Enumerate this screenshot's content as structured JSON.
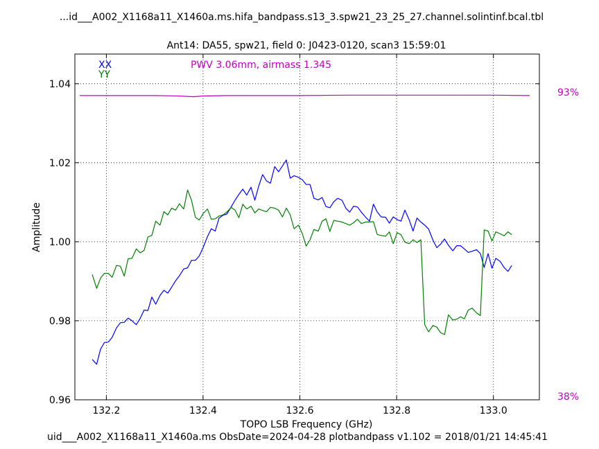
{
  "header": {
    "title": "...id___A002_X1168a11_X1460a.ms.hifa_bandpass.s13_3.spw21_23_25_27.channel.solintinf.bcal.tbl",
    "subtitle": "Ant14: DA55,  spw21,  field 0: J0423-0120,  scan3  15:59:01"
  },
  "footer": {
    "text": "uid___A002_X1168a11_X1460a.ms  ObsDate=2024-04-28   plotbandpass v1.102 = 2018/01/21 14:45:41"
  },
  "chart_data": {
    "type": "line",
    "xlabel": "TOPO LSB Frequency (GHz)",
    "ylabel": "Amplitude",
    "xlim": [
      132.135,
      133.095
    ],
    "ylim": [
      0.96,
      1.0475
    ],
    "xticks": [
      132.2,
      132.4,
      132.6,
      132.8,
      133.0
    ],
    "xtick_labels": [
      "132.2",
      "132.4",
      "132.6",
      "132.8",
      "133.0"
    ],
    "yticks": [
      0.96,
      0.98,
      1.0,
      1.02,
      1.04
    ],
    "ytick_labels": [
      "0.96",
      "0.98",
      "1.00",
      "1.02",
      "1.04"
    ],
    "grid": true,
    "legend": {
      "placement": "top-left",
      "entries": [
        {
          "label": "XX",
          "color": "#0000ff"
        },
        {
          "label": "YY",
          "color": "#008000"
        }
      ]
    },
    "annotation": {
      "text": "PWV 3.06mm, airmass 1.345",
      "color": "#c000c0"
    },
    "atm_scale": {
      "top_label": "93%",
      "bottom_label": "38%",
      "color": "#c000c0"
    },
    "series": [
      {
        "name": "XX",
        "color": "#0000ff",
        "x": [
          132.171,
          132.18,
          132.188,
          132.196,
          132.204,
          132.212,
          132.221,
          132.229,
          132.237,
          132.245,
          132.253,
          132.262,
          132.27,
          132.278,
          132.286,
          132.294,
          132.302,
          132.311,
          132.319,
          132.327,
          132.335,
          132.343,
          132.351,
          132.36,
          132.368,
          132.376,
          132.384,
          132.392,
          132.4,
          132.409,
          132.417,
          132.425,
          132.433,
          132.441,
          132.449,
          132.458,
          132.466,
          132.474,
          132.482,
          132.49,
          132.499,
          132.507,
          132.515,
          132.523,
          132.531,
          132.539,
          132.548,
          132.556,
          132.564,
          132.572,
          132.58,
          132.588,
          132.597,
          132.605,
          132.613,
          132.621,
          132.629,
          132.638,
          132.646,
          132.654,
          132.662,
          132.67,
          132.678,
          132.687,
          132.695,
          132.703,
          132.711,
          132.719,
          132.727,
          132.736,
          132.744,
          132.752,
          132.76,
          132.768,
          132.777,
          132.785,
          132.793,
          132.801,
          132.809,
          132.817,
          132.826,
          132.834,
          132.842,
          132.85,
          132.858,
          132.866,
          132.875,
          132.883,
          132.891,
          132.899,
          132.907,
          132.916,
          132.924,
          132.932,
          132.94,
          132.948,
          132.956,
          132.965,
          132.973,
          132.981,
          132.989,
          132.997,
          133.005,
          133.014,
          133.022,
          133.03,
          133.038
        ],
        "values": [
          0.9702,
          0.969,
          0.9728,
          0.9745,
          0.9746,
          0.9758,
          0.9782,
          0.9795,
          0.9796,
          0.9807,
          0.98,
          0.979,
          0.9806,
          0.9827,
          0.9826,
          0.986,
          0.9842,
          0.9864,
          0.9877,
          0.987,
          0.9885,
          0.9901,
          0.9914,
          0.9931,
          0.9934,
          0.9953,
          0.9953,
          0.9964,
          0.9985,
          1.0013,
          1.0033,
          1.0027,
          1.006,
          1.0067,
          1.007,
          1.0088,
          1.0105,
          1.012,
          1.0133,
          1.0118,
          1.0138,
          1.0105,
          1.0141,
          1.017,
          1.0154,
          1.0148,
          1.019,
          1.0177,
          1.0192,
          1.0207,
          1.0161,
          1.0167,
          1.0163,
          1.0157,
          1.0145,
          1.0145,
          1.011,
          1.0106,
          1.0112,
          1.0089,
          1.0086,
          1.0101,
          1.011,
          1.0105,
          1.0085,
          1.0075,
          1.009,
          1.0088,
          1.0075,
          1.0062,
          1.0052,
          1.0095,
          1.0075,
          1.0063,
          1.0062,
          1.0047,
          1.0063,
          1.0056,
          1.0052,
          1.008,
          1.0055,
          1.0027,
          1.006,
          1.005,
          1.0042,
          1.0032,
          1.0004,
          0.9985,
          0.9994,
          1.0007,
          0.9991,
          0.9977,
          0.999,
          0.999,
          0.9982,
          0.9973,
          0.9976,
          0.998,
          0.997,
          0.9935,
          0.997,
          0.9933,
          0.9958,
          0.995,
          0.9935,
          0.9925,
          0.994
        ]
      },
      {
        "name": "YY",
        "color": "#008000",
        "x": [
          132.171,
          132.18,
          132.188,
          132.196,
          132.204,
          132.212,
          132.221,
          132.229,
          132.237,
          132.245,
          132.253,
          132.262,
          132.27,
          132.278,
          132.286,
          132.294,
          132.302,
          132.311,
          132.319,
          132.327,
          132.335,
          132.343,
          132.351,
          132.36,
          132.368,
          132.376,
          132.384,
          132.392,
          132.4,
          132.409,
          132.417,
          132.425,
          132.433,
          132.441,
          132.449,
          132.458,
          132.466,
          132.474,
          132.482,
          132.49,
          132.499,
          132.507,
          132.515,
          132.523,
          132.531,
          132.539,
          132.548,
          132.556,
          132.564,
          132.572,
          132.58,
          132.588,
          132.597,
          132.605,
          132.613,
          132.621,
          132.629,
          132.638,
          132.646,
          132.654,
          132.662,
          132.67,
          132.678,
          132.687,
          132.695,
          132.703,
          132.711,
          132.719,
          132.727,
          132.736,
          132.744,
          132.752,
          132.76,
          132.768,
          132.777,
          132.785,
          132.793,
          132.801,
          132.809,
          132.817,
          132.826,
          132.834,
          132.842,
          132.85,
          132.858,
          132.866,
          132.875,
          132.883,
          132.891,
          132.899,
          132.907,
          132.916,
          132.924,
          132.932,
          132.94,
          132.948,
          132.956,
          132.965,
          132.973,
          132.981,
          132.989,
          132.997,
          133.005,
          133.014,
          133.022,
          133.03,
          133.038
        ],
        "values": [
          0.9917,
          0.9882,
          0.9908,
          0.992,
          0.992,
          0.991,
          0.994,
          0.9938,
          0.9913,
          0.9957,
          0.9958,
          0.9982,
          0.9972,
          0.9978,
          1.0012,
          1.0016,
          1.0052,
          1.0042,
          1.0076,
          1.0068,
          1.0085,
          1.008,
          1.0096,
          1.0083,
          1.0131,
          1.0105,
          1.0062,
          1.0055,
          1.0071,
          1.0083,
          1.0057,
          1.0058,
          1.0065,
          1.0068,
          1.0075,
          1.0087,
          1.008,
          1.0061,
          1.0095,
          1.0083,
          1.009,
          1.0073,
          1.0083,
          1.0079,
          1.0076,
          1.0087,
          1.0085,
          1.008,
          1.0063,
          1.0085,
          1.0068,
          1.0033,
          1.0042,
          1.0021,
          0.9989,
          1.0005,
          1.0031,
          1.0027,
          1.0052,
          1.0058,
          1.0026,
          1.0054,
          1.0052,
          1.005,
          1.0046,
          1.0042,
          1.0048,
          1.0057,
          1.0046,
          1.005,
          1.005,
          1.0051,
          1.0018,
          1.0016,
          1.0014,
          1.0025,
          0.9995,
          1.0023,
          1.0018,
          0.9999,
          0.9995,
          1.0005,
          0.9998,
          1.0005,
          0.979,
          0.9772,
          0.9788,
          0.9784,
          0.977,
          0.9765,
          0.9815,
          0.9802,
          0.9804,
          0.981,
          0.9805,
          0.9827,
          0.9832,
          0.982,
          0.9813,
          1.003,
          1.0027,
          1.0002,
          1.0025,
          1.002,
          1.0015,
          1.0025,
          1.0018
        ]
      },
      {
        "name": "",
        "color": "#c000c0",
        "x": [
          132.145,
          132.2,
          132.25,
          132.3,
          132.35,
          132.38,
          132.4,
          132.45,
          132.5,
          132.6,
          132.7,
          132.8,
          132.9,
          133.0,
          133.075
        ],
        "values": [
          1.037,
          1.037,
          1.037,
          1.037,
          1.0369,
          1.0367,
          1.0369,
          1.037,
          1.037,
          1.037,
          1.0371,
          1.0371,
          1.0371,
          1.0371,
          1.037
        ]
      }
    ]
  }
}
